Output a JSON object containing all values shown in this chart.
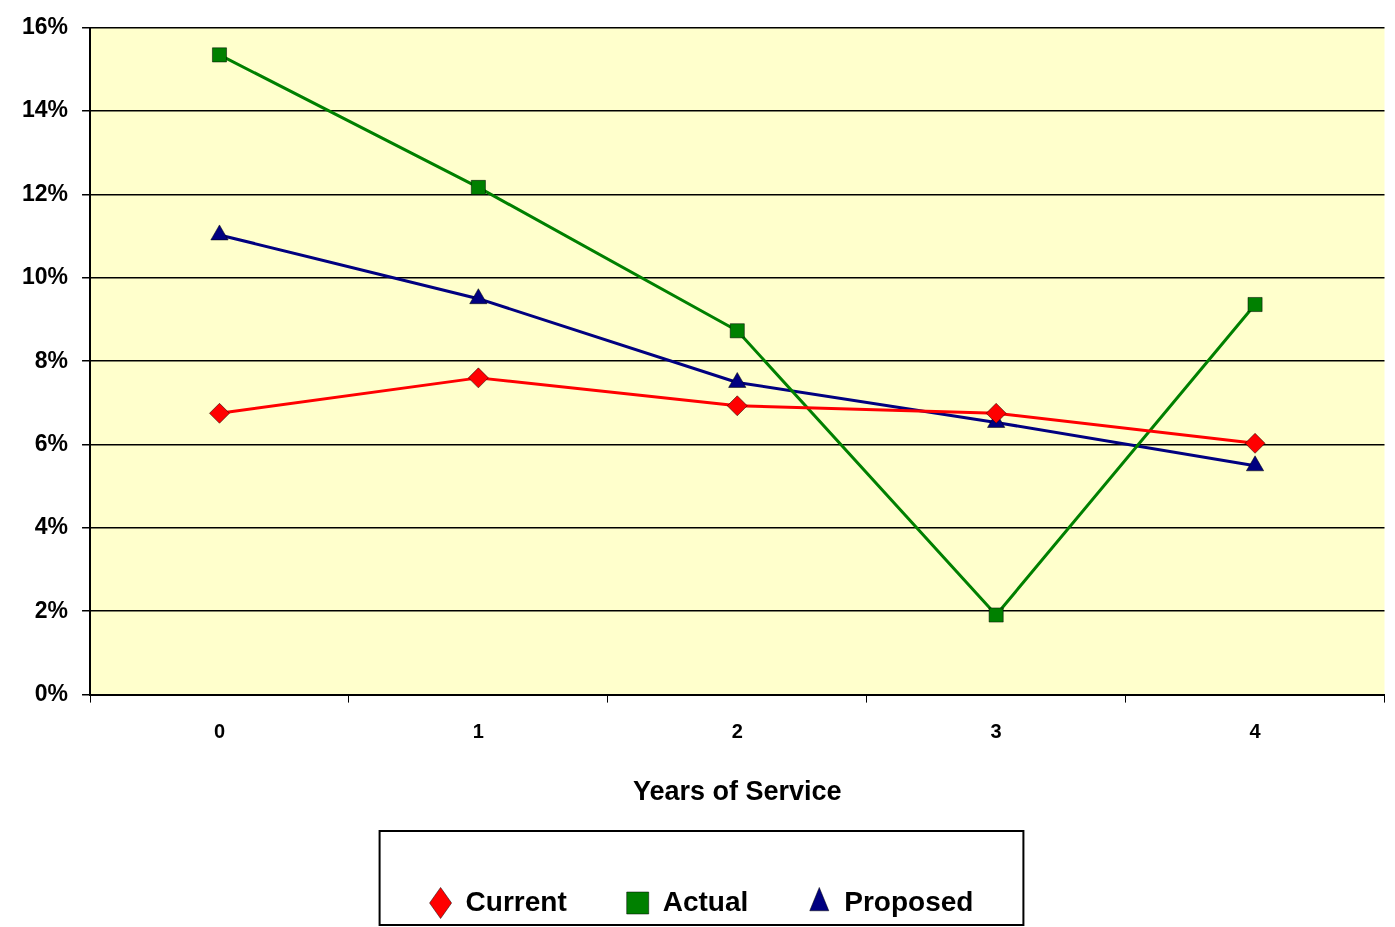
{
  "chart_data": {
    "type": "line",
    "xlabel": "Years of Service",
    "categories": [
      "0",
      "1",
      "2",
      "3",
      "4"
    ],
    "series": [
      {
        "name": "Current",
        "color": "#ff0000",
        "marker": "diamond",
        "values": [
          6.75,
          7.6,
          6.93,
          6.75,
          6.03
        ]
      },
      {
        "name": "Actual",
        "color": "#008000",
        "marker": "square",
        "values": [
          15.35,
          12.17,
          8.73,
          1.91,
          9.36
        ]
      },
      {
        "name": "Proposed",
        "color": "#000080",
        "marker": "triangle",
        "values": [
          11.03,
          9.5,
          7.49,
          6.53,
          5.49
        ]
      }
    ],
    "ylim": [
      0,
      16
    ],
    "yticks": [
      {
        "value": 0,
        "label": "0%"
      },
      {
        "value": 2,
        "label": "2%"
      },
      {
        "value": 4,
        "label": "4%"
      },
      {
        "value": 6,
        "label": "6%"
      },
      {
        "value": 8,
        "label": "8%"
      },
      {
        "value": 10,
        "label": "10%"
      },
      {
        "value": 12,
        "label": "12%"
      },
      {
        "value": 14,
        "label": "14%"
      },
      {
        "value": 16,
        "label": "16%"
      }
    ],
    "grid": "y",
    "legend": "bottom",
    "line_style": "solid"
  }
}
